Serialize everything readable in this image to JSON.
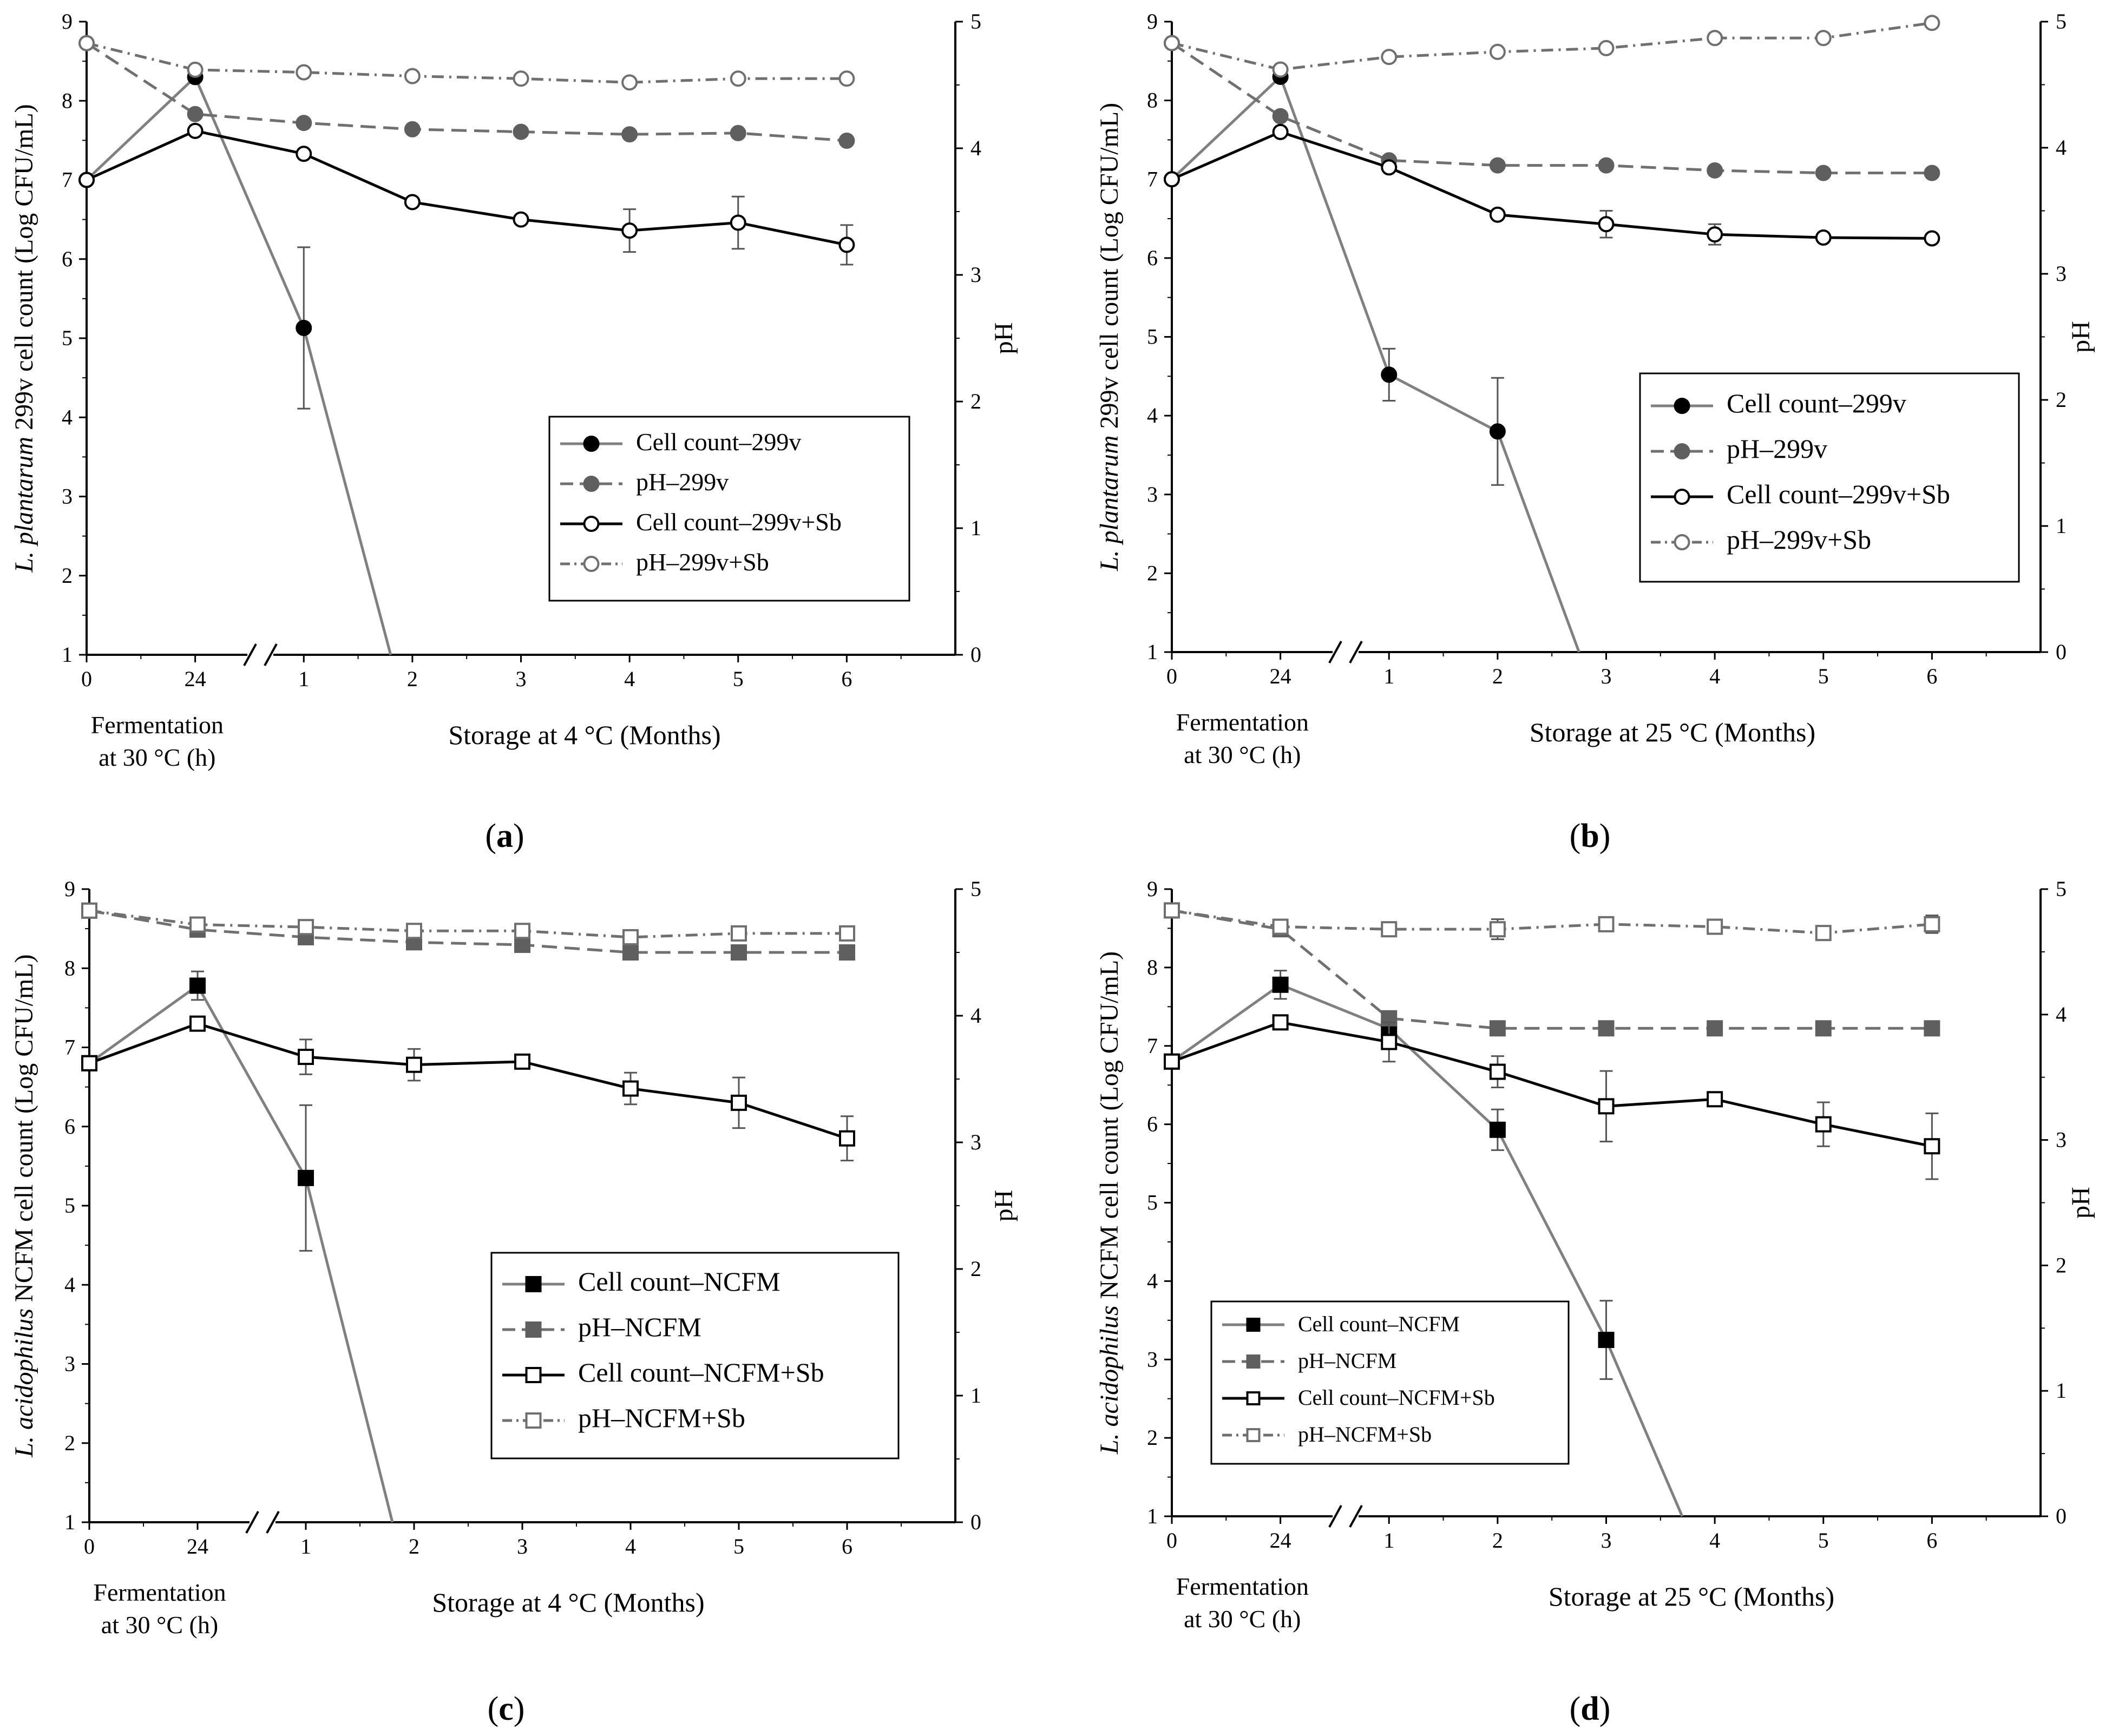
{
  "chart_data": [
    {
      "id": "a",
      "type": "line",
      "panel_label": "(a)",
      "ylabel_italic": "L. plantarum",
      "ylabel_rest": " 299v cell count (Log CFU/mL)",
      "y2label": "pH",
      "ylim": [
        1,
        9
      ],
      "y2lim": [
        0,
        5
      ],
      "yticks": [
        1,
        2,
        3,
        4,
        5,
        6,
        7,
        8,
        9
      ],
      "y2ticks": [
        0,
        1,
        2,
        3,
        4,
        5
      ],
      "xlim": [
        0,
        8
      ],
      "xticks": [
        0,
        1,
        2,
        3,
        4,
        5,
        6,
        7
      ],
      "xticklabels": [
        "0",
        "24",
        "1",
        "2",
        "3",
        "4",
        "5",
        "6"
      ],
      "axis_break": true,
      "xlabel_fermentation": [
        "Fermentation",
        "at 30 °C (h)"
      ],
      "xlabel_storage": "Storage at 4 °C (Months)",
      "legend_position": "center-right",
      "legend_font": "large",
      "series": [
        {
          "name": "Cell count–299v",
          "marker": "circle",
          "filled": true,
          "color": "#000000",
          "line_color": "#808080",
          "style": "solid",
          "axis": "left",
          "x": [
            0,
            1,
            2,
            2.8
          ],
          "values": [
            7.0,
            8.3,
            5.13,
            1.0
          ],
          "errors": [
            0,
            0,
            1.02,
            0
          ],
          "markers": [
            true,
            true,
            true,
            false
          ]
        },
        {
          "name": "pH–299v",
          "marker": "circle",
          "filled": true,
          "color": "#5f5f5f",
          "line_color": "#707070",
          "style": "dash",
          "axis": "right",
          "x": [
            0,
            1,
            2,
            3,
            4,
            5,
            6,
            7
          ],
          "values": [
            4.83,
            4.27,
            4.2,
            4.15,
            4.13,
            4.11,
            4.12,
            4.06
          ],
          "errors": [
            0,
            0,
            0,
            0,
            0,
            0,
            0,
            0
          ]
        },
        {
          "name": "Cell count–299v+Sb",
          "marker": "circle",
          "filled": false,
          "color": "#000000",
          "line_color": "#000000",
          "style": "solid",
          "axis": "left",
          "x": [
            0,
            1,
            2,
            3,
            4,
            5,
            6,
            7
          ],
          "values": [
            7.0,
            7.62,
            7.33,
            6.72,
            6.5,
            6.36,
            6.46,
            6.18
          ],
          "errors": [
            0,
            0,
            0,
            0,
            0,
            0.27,
            0.33,
            0.25
          ]
        },
        {
          "name": "pH–299v+Sb",
          "marker": "circle",
          "filled": false,
          "color": "#6f6f6f",
          "line_color": "#707070",
          "style": "dashdot",
          "axis": "right",
          "x": [
            0,
            1,
            2,
            3,
            4,
            5,
            6,
            7
          ],
          "values": [
            4.83,
            4.62,
            4.6,
            4.57,
            4.55,
            4.52,
            4.55,
            4.55
          ],
          "errors": [
            0,
            0,
            0,
            0,
            0,
            0,
            0,
            0
          ]
        }
      ]
    },
    {
      "id": "b",
      "type": "line",
      "panel_label": "(b)",
      "ylabel_italic": "L. plantarum",
      "ylabel_rest": " 299v cell count (Log CFU/mL)",
      "y2label": "pH",
      "ylim": [
        1,
        9
      ],
      "y2lim": [
        0,
        5
      ],
      "yticks": [
        1,
        2,
        3,
        4,
        5,
        6,
        7,
        8,
        9
      ],
      "y2ticks": [
        0,
        1,
        2,
        3,
        4,
        5
      ],
      "xlim": [
        0,
        8
      ],
      "xticks": [
        0,
        1,
        2,
        3,
        4,
        5,
        6,
        7
      ],
      "xticklabels": [
        "0",
        "24",
        "1",
        "2",
        "3",
        "4",
        "5",
        "6"
      ],
      "axis_break": true,
      "xlabel_fermentation": [
        "Fermentation",
        "at 30 °C (h)"
      ],
      "xlabel_storage": "Storage at 25 °C (Months)",
      "legend_position": "center-right",
      "legend_font": "large",
      "series": [
        {
          "name": "Cell count–299v",
          "marker": "circle",
          "filled": true,
          "color": "#000000",
          "line_color": "#808080",
          "style": "solid",
          "axis": "left",
          "x": [
            0,
            1,
            2,
            3,
            3.75
          ],
          "values": [
            7.0,
            8.3,
            4.52,
            3.8,
            1.0
          ],
          "errors": [
            0,
            0,
            0.33,
            0.68,
            0
          ],
          "markers": [
            true,
            true,
            true,
            true,
            false
          ]
        },
        {
          "name": "pH–299v",
          "marker": "circle",
          "filled": true,
          "color": "#5f5f5f",
          "line_color": "#707070",
          "style": "dash",
          "axis": "right",
          "x": [
            0,
            1,
            2,
            3,
            4,
            5,
            6,
            7
          ],
          "values": [
            4.83,
            4.25,
            3.9,
            3.86,
            3.86,
            3.82,
            3.8,
            3.8
          ],
          "errors": [
            0,
            0,
            0,
            0,
            0,
            0,
            0,
            0
          ]
        },
        {
          "name": "Cell count–299v+Sb",
          "marker": "circle",
          "filled": false,
          "color": "#000000",
          "line_color": "#000000",
          "style": "solid",
          "axis": "left",
          "x": [
            0,
            1,
            2,
            3,
            4,
            5,
            6,
            7
          ],
          "values": [
            7.0,
            7.6,
            7.15,
            6.55,
            6.43,
            6.3,
            6.26,
            6.25
          ],
          "errors": [
            0,
            0,
            0,
            0,
            0.17,
            0.13,
            0,
            0
          ]
        },
        {
          "name": "pH–299v+Sb",
          "marker": "circle",
          "filled": false,
          "color": "#6f6f6f",
          "line_color": "#707070",
          "style": "dashdot",
          "axis": "right",
          "x": [
            0,
            1,
            2,
            3,
            4,
            5,
            6,
            7
          ],
          "values": [
            4.83,
            4.62,
            4.72,
            4.76,
            4.79,
            4.87,
            4.87,
            4.99
          ],
          "errors": [
            0,
            0,
            0,
            0,
            0,
            0,
            0,
            0
          ]
        }
      ]
    },
    {
      "id": "c",
      "type": "line",
      "panel_label": "(c)",
      "ylabel_italic": "L. acidophilus",
      "ylabel_rest": " NCFM cell count (Log CFU/mL)",
      "y2label": "pH",
      "ylim": [
        1,
        9
      ],
      "y2lim": [
        0,
        5
      ],
      "yticks": [
        1,
        2,
        3,
        4,
        5,
        6,
        7,
        8,
        9
      ],
      "y2ticks": [
        0,
        1,
        2,
        3,
        4,
        5
      ],
      "xlim": [
        0,
        8
      ],
      "xticks": [
        0,
        1,
        2,
        3,
        4,
        5,
        6,
        7
      ],
      "xticklabels": [
        "0",
        "24",
        "1",
        "2",
        "3",
        "4",
        "5",
        "6"
      ],
      "axis_break": true,
      "xlabel_fermentation": [
        "Fermentation",
        "at 30 °C (h)"
      ],
      "xlabel_storage": "Storage at 4 °C (Months)",
      "legend_position": "center-right",
      "legend_font": "large",
      "series": [
        {
          "name": "Cell count–NCFM",
          "marker": "square",
          "filled": true,
          "color": "#000000",
          "line_color": "#808080",
          "style": "solid",
          "axis": "left",
          "x": [
            0,
            1,
            2,
            2.8
          ],
          "values": [
            6.8,
            7.78,
            5.35,
            1.0
          ],
          "errors": [
            0,
            0.18,
            0.92,
            0
          ],
          "markers": [
            true,
            true,
            true,
            false
          ]
        },
        {
          "name": "pH–NCFM",
          "marker": "square",
          "filled": true,
          "color": "#5f5f5f",
          "line_color": "#707070",
          "style": "dash",
          "axis": "right",
          "x": [
            0,
            1,
            2,
            3,
            4,
            5,
            6,
            7
          ],
          "values": [
            4.83,
            4.68,
            4.62,
            4.58,
            4.56,
            4.5,
            4.5,
            4.5
          ],
          "errors": [
            0,
            0,
            0,
            0,
            0,
            0,
            0,
            0
          ]
        },
        {
          "name": "Cell count–NCFM+Sb",
          "marker": "square",
          "filled": false,
          "color": "#000000",
          "line_color": "#000000",
          "style": "solid",
          "axis": "left",
          "x": [
            0,
            1,
            2,
            3,
            4,
            5,
            6,
            7
          ],
          "values": [
            6.8,
            7.3,
            6.88,
            6.78,
            6.82,
            6.48,
            6.3,
            5.85
          ],
          "errors": [
            0,
            0,
            0.22,
            0.2,
            0,
            0.2,
            0.32,
            0.28
          ]
        },
        {
          "name": "pH–NCFM+Sb",
          "marker": "square",
          "filled": false,
          "color": "#6f6f6f",
          "line_color": "#707070",
          "style": "dashdot",
          "axis": "right",
          "x": [
            0,
            1,
            2,
            3,
            4,
            5,
            6,
            7
          ],
          "values": [
            4.83,
            4.72,
            4.7,
            4.67,
            4.67,
            4.62,
            4.65,
            4.65
          ],
          "errors": [
            0,
            0.05,
            0,
            0,
            0,
            0,
            0,
            0
          ]
        }
      ]
    },
    {
      "id": "d",
      "type": "line",
      "panel_label": "(d)",
      "ylabel_italic": "L. acidophilus",
      "ylabel_rest": " NCFM cell count (Log CFU/mL)",
      "y2label": "pH",
      "ylim": [
        1,
        9
      ],
      "y2lim": [
        0,
        5
      ],
      "yticks": [
        1,
        2,
        3,
        4,
        5,
        6,
        7,
        8,
        9
      ],
      "y2ticks": [
        0,
        1,
        2,
        3,
        4,
        5
      ],
      "xlim": [
        0,
        8
      ],
      "xticks": [
        0,
        1,
        2,
        3,
        4,
        5,
        6,
        7
      ],
      "xticklabels": [
        "0",
        "24",
        "1",
        "2",
        "3",
        "4",
        "5",
        "6"
      ],
      "axis_break": true,
      "xlabel_fermentation": [
        "Fermentation",
        "at 30 °C (h)"
      ],
      "xlabel_storage": "Storage at 25 °C (Months)",
      "legend_position": "bottom-left",
      "legend_font": "small",
      "series": [
        {
          "name": "Cell count–NCFM",
          "marker": "square",
          "filled": true,
          "color": "#000000",
          "line_color": "#808080",
          "style": "solid",
          "axis": "left",
          "x": [
            0,
            1,
            2,
            3,
            4,
            4.7
          ],
          "values": [
            6.8,
            7.78,
            7.22,
            5.93,
            3.25,
            1.0
          ],
          "errors": [
            0,
            0.18,
            0,
            0.26,
            0.5,
            0
          ],
          "markers": [
            true,
            true,
            true,
            true,
            true,
            false
          ]
        },
        {
          "name": "pH–NCFM",
          "marker": "square",
          "filled": true,
          "color": "#5f5f5f",
          "line_color": "#707070",
          "style": "dash",
          "axis": "right",
          "x": [
            0,
            1,
            2,
            3,
            4,
            5,
            6,
            7
          ],
          "values": [
            4.83,
            4.68,
            3.97,
            3.89,
            3.89,
            3.89,
            3.89,
            3.89
          ],
          "errors": [
            0,
            0,
            0,
            0,
            0,
            0,
            0,
            0
          ]
        },
        {
          "name": "Cell count–NCFM+Sb",
          "marker": "square",
          "filled": false,
          "color": "#000000",
          "line_color": "#000000",
          "style": "solid",
          "axis": "left",
          "x": [
            0,
            1,
            2,
            3,
            4,
            5,
            6,
            7
          ],
          "values": [
            6.8,
            7.3,
            7.05,
            6.67,
            6.23,
            6.32,
            6.0,
            5.72
          ],
          "errors": [
            0,
            0,
            0.25,
            0.2,
            0.45,
            0,
            0.28,
            0.42
          ]
        },
        {
          "name": "pH–NCFM+Sb",
          "marker": "square",
          "filled": false,
          "color": "#6f6f6f",
          "line_color": "#707070",
          "style": "dashdot",
          "axis": "right",
          "x": [
            0,
            1,
            2,
            3,
            4,
            5,
            6,
            7
          ],
          "values": [
            4.83,
            4.7,
            4.68,
            4.68,
            4.72,
            4.7,
            4.65,
            4.72
          ],
          "errors": [
            0,
            0.05,
            0,
            0.08,
            0,
            0,
            0,
            0.07
          ]
        }
      ]
    }
  ]
}
